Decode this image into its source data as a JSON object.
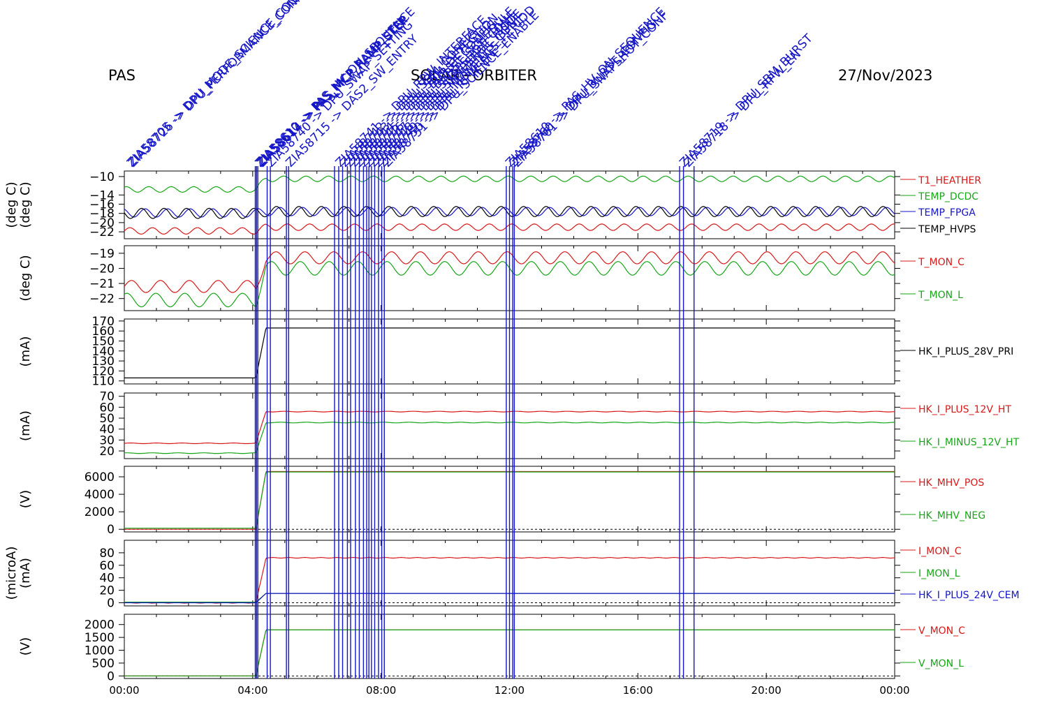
{
  "header": {
    "left": "PAS",
    "center": "SOLAR−ORBITER",
    "right": "27/Nov/2023"
  },
  "colors": {
    "red": "#d81818",
    "green": "#16a616",
    "blue": "#1515c8",
    "black": "#000000"
  },
  "chart_data": {
    "type": "line",
    "x_axis": {
      "ticks": [
        "00:00",
        "04:00",
        "08:00",
        "12:00",
        "16:00",
        "20:00",
        "00:00"
      ],
      "range_hours": [
        0,
        24
      ]
    },
    "event_lines_hours": [
      4.08,
      4.12,
      4.16,
      4.45,
      4.55,
      5.05,
      5.12,
      6.55,
      6.68,
      6.8,
      6.95,
      7.05,
      7.2,
      7.32,
      7.45,
      7.55,
      7.62,
      7.7,
      7.8,
      7.92,
      8.02,
      8.1,
      11.9,
      12.0,
      12.1,
      12.15,
      17.3,
      17.42,
      17.75
    ],
    "event_labels": [
      {
        "t": 0.1,
        "text": "ZIA58705 -> DPU_MODE_SCIENCE_CONF"
      },
      {
        "t": 0.15,
        "text": "ZIA58726 -> DPU_PERFORMANCE_CONFIG"
      },
      {
        "t": 4.1,
        "text": "ZIA58610 -> PAS_HV_ON_SEQUENCE"
      },
      {
        "t": 4.14,
        "text": "ZIA58612 -> PAS_MCP_RAMP_STEP"
      },
      {
        "t": 4.18,
        "text": "ZIA58614 -> PAS_MCP_RAMP_STEP"
      },
      {
        "t": 4.45,
        "text": "ZIA58740 -> DPU_SWAP_SETTING"
      },
      {
        "t": 5.05,
        "text": "ZIA58715 -> DAS2_SW_ENTRY"
      },
      {
        "t": 6.6,
        "text": "ZIA58741 -> DPU_RPW_INTERFACE"
      },
      {
        "t": 6.75,
        "text": "ZIA58742 -> DPU_SBM_CONFIG"
      },
      {
        "t": 6.9,
        "text": "ZIA58743 -> DPU_SBM_DETECTION"
      },
      {
        "t": 7.05,
        "text": "ZIA58744 -> DPU_BURST_CONFIG"
      },
      {
        "t": 7.2,
        "text": "ZIA58745 -> DPU_BURST_SCHEDULE"
      },
      {
        "t": 7.35,
        "text": "ZIA58746 -> DPU_SNAPSHOT_CONF"
      },
      {
        "t": 7.5,
        "text": "ZIA58747 -> DPU_SNAPSHOT_MODE"
      },
      {
        "t": 7.65,
        "text": "ZIA58748 -> DPU_MOMENTS_CONF"
      },
      {
        "t": 7.8,
        "text": "ZIA58749 -> DPU_MOMENTS_PERIOD"
      },
      {
        "t": 7.95,
        "text": "ZIA58750 -> DPU_RPW_EN"
      },
      {
        "t": 8.08,
        "text": "ZIA58751 -> DPU_SCIENCE_ENABLE"
      },
      {
        "t": 11.9,
        "text": "ZIA58610 -> PAS_HV_ON_SEQUENCE"
      },
      {
        "t": 12.02,
        "text": "ZIA58760 -> DPU_BURST_CONFIG"
      },
      {
        "t": 12.12,
        "text": "ZIA58761 -> DPU_SNAPSHOT_CONF"
      },
      {
        "t": 17.32,
        "text": "ZIA58719 -> DPU_SBM_BURST"
      },
      {
        "t": 17.45,
        "text": "ZIA58718 -> DPU_RPW_EN"
      }
    ],
    "panels": [
      {
        "ylabel": "(deg C)",
        "ylabel2": "(deg C)",
        "ylim": [
          -23.5,
          -8.8
        ],
        "yticks": [
          -10,
          -14,
          -16,
          -18,
          -20,
          -22
        ],
        "ytick_labels": [
          "−10",
          "−14",
          "−16",
          "−18",
          "−20",
          "−22"
        ],
        "series": [
          {
            "name": "T1_HEATHER",
            "color": "red",
            "before": -21.8,
            "after": -21.0,
            "amp": 0.7,
            "period": 0.7
          },
          {
            "name": "TEMP_DCDC",
            "color": "green",
            "before": -12.8,
            "after": -10.5,
            "amp": 0.6,
            "period": 0.7
          },
          {
            "name": "TEMP_FPGA",
            "color": "blue",
            "before": -17.9,
            "after": -17.6,
            "amp": 0.9,
            "period": 0.7
          },
          {
            "name": "TEMP_HVPS",
            "color": "black",
            "before": -18.0,
            "after": -17.6,
            "amp": 1.1,
            "period": 0.7
          }
        ]
      },
      {
        "ylabel": "(deg C)",
        "ylim": [
          -22.8,
          -18.5
        ],
        "yticks": [
          -19,
          -20,
          -21,
          -22
        ],
        "ytick_labels": [
          "−19",
          "−20",
          "−21",
          "−22"
        ],
        "series": [
          {
            "name": "T_MON_C",
            "color": "red",
            "before": -21.2,
            "after": -19.3,
            "amp": 0.4,
            "period": 0.9
          },
          {
            "name": "T_MON_L",
            "color": "green",
            "before": -22.1,
            "after": -20.0,
            "amp": 0.45,
            "period": 0.9
          }
        ]
      },
      {
        "ylabel": "(mA)",
        "ylim": [
          107,
          172
        ],
        "yticks": [
          110,
          120,
          130,
          140,
          150,
          160,
          170
        ],
        "ytick_labels": [
          "110",
          "120",
          "130",
          "140",
          "150",
          "160",
          "170"
        ],
        "series": [
          {
            "name": "HK_I_PLUS_28V_PRI",
            "color": "black",
            "before": 113,
            "after": 163,
            "amp": 0,
            "period": 1
          }
        ]
      },
      {
        "ylabel": "(mA)",
        "ylim": [
          13,
          73
        ],
        "yticks": [
          20,
          30,
          40,
          50,
          60,
          70
        ],
        "ytick_labels": [
          "20",
          "30",
          "40",
          "50",
          "60",
          "70"
        ],
        "series": [
          {
            "name": "HK_I_PLUS_12V_HT",
            "color": "red",
            "before": 27,
            "after": 56,
            "amp": 0.3,
            "period": 0.8
          },
          {
            "name": "HK_I_MINUS_12V_HT",
            "color": "green",
            "before": 18,
            "after": 46,
            "amp": 0.3,
            "period": 0.8
          }
        ]
      },
      {
        "ylabel": "(V)",
        "ylim": [
          -300,
          7200
        ],
        "yticks": [
          0,
          2000,
          4000,
          6000
        ],
        "ytick_labels": [
          "0",
          "2000",
          "4000",
          "6000"
        ],
        "series": [
          {
            "name": "HK_MHV_POS",
            "color": "red",
            "before": 0,
            "after": 6600,
            "amp": 0,
            "period": 1
          },
          {
            "name": "HK_MHV_NEG",
            "color": "green",
            "before": 120,
            "after": 6550,
            "amp": 0,
            "period": 1
          }
        ]
      },
      {
        "ylabel": "(mA)",
        "ylabel2": "(microA)",
        "ylim": [
          -5,
          100
        ],
        "yticks": [
          0,
          20,
          40,
          60,
          80
        ],
        "ytick_labels": [
          "0",
          "20",
          "40",
          "60",
          "80"
        ],
        "series": [
          {
            "name": "I_MON_C",
            "color": "red",
            "before": 0,
            "after": 72,
            "amp": 0.5,
            "period": 0.5
          },
          {
            "name": "I_MON_L",
            "color": "green",
            "before": 1,
            "after": 15,
            "amp": 0,
            "period": 1
          },
          {
            "name": "HK_I_PLUS_24V_CEM",
            "color": "blue",
            "before": 0,
            "after": 15,
            "amp": 0,
            "period": 1
          }
        ]
      },
      {
        "ylabel": "(V)",
        "ylim": [
          -100,
          2400
        ],
        "yticks": [
          0,
          500,
          1000,
          1500,
          2000
        ],
        "ytick_labels": [
          "0",
          "500",
          "1000",
          "1500",
          "2000"
        ],
        "series": [
          {
            "name": "V_MON_C",
            "color": "red",
            "before": 0,
            "after": 1790,
            "amp": 0,
            "period": 1
          },
          {
            "name": "V_MON_L",
            "color": "green",
            "before": 0,
            "after": 1790,
            "amp": 0,
            "period": 1
          }
        ]
      }
    ]
  }
}
